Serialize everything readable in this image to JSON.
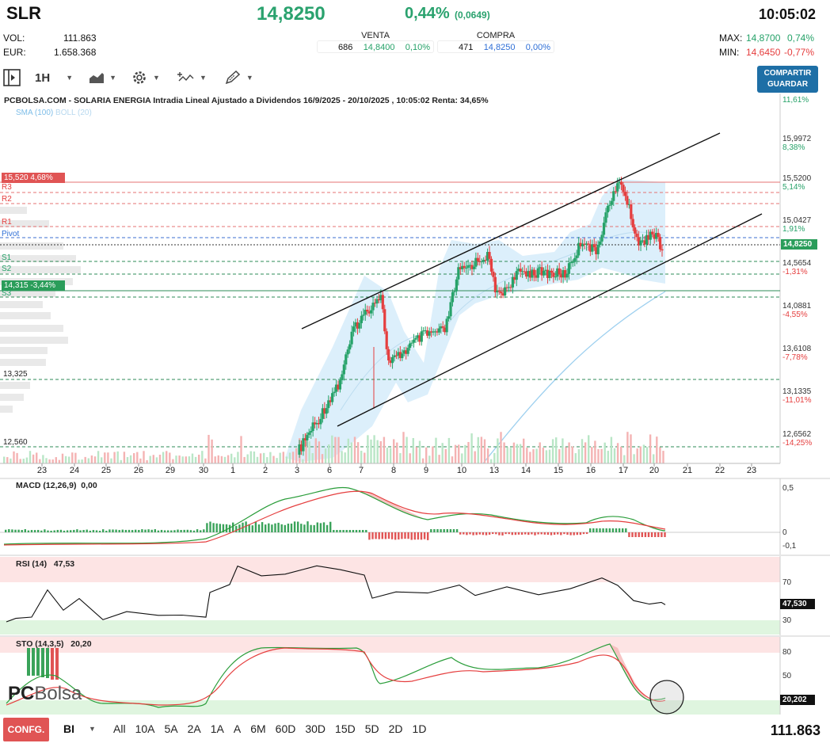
{
  "header": {
    "ticker": "SLR",
    "price": "14,8250",
    "change_pct": "0,44%",
    "change_abs": "(0,0649)",
    "time": "10:05:02",
    "vol_label": "VOL:",
    "vol_value": "111.863",
    "eur_label": "EUR:",
    "eur_value": "1.658.368",
    "max_label": "MAX:",
    "max_value": "14,8700",
    "max_pct": "0,74%",
    "min_label": "MIN:",
    "min_value": "14,6450",
    "min_pct": "-0,77%"
  },
  "bidask": {
    "sell_label": "VENTA",
    "sell_qty": "686",
    "sell_price": "14,8400",
    "sell_pct": "0,10%",
    "buy_label": "COMPRA",
    "buy_qty": "471",
    "buy_price": "14,8250",
    "buy_pct": "0,00%"
  },
  "toolbar": {
    "timeframe": "1H",
    "share_label_1": "COMPARTIR",
    "share_label_2": "GUARDAR"
  },
  "chart": {
    "title": "PCBOLSA.COM - SOLARIA ENERGIA Intradia Lineal Ajustado a Dividendos 16/9/2025 - 20/10/2025 , 10:05:02 Renta: 34,65%",
    "legend_sma": "SMA (100)",
    "legend_boll": "BOLL (20)",
    "y_ticks": [
      {
        "price": "15,9972",
        "pct": "8,38%"
      },
      {
        "price": "15,5200",
        "pct": "5,14%"
      },
      {
        "price": "15,0427",
        "pct": "1,91%"
      },
      {
        "price": "14,5654",
        "pct": "-1,31%"
      },
      {
        "price": "14,0881",
        "pct": "-4,55%"
      },
      {
        "price": "13,6108",
        "pct": "-7,78%"
      },
      {
        "price": "13,1335",
        "pct": "-11,01%"
      },
      {
        "price": "12,6562",
        "pct": "-14,25%"
      }
    ],
    "top_pct": "11,61%",
    "current_price_tag": "14,8250",
    "max_tag": "15,520  4,68%",
    "min_tag": "14,315  -3,44%",
    "levels": {
      "r3": "R3",
      "r2": "R2",
      "r1": "R1",
      "pivot": "Pivot",
      "s1": "S1",
      "s2": "S2",
      "s3": "S3"
    },
    "price_levels_left": [
      "13,325",
      "12,560"
    ],
    "x_ticks": [
      "23",
      "24",
      "25",
      "26",
      "29",
      "30",
      "1",
      "2",
      "3",
      "6",
      "7",
      "8",
      "9",
      "10",
      "13",
      "14",
      "15",
      "16",
      "17",
      "20",
      "21",
      "22",
      "23"
    ]
  },
  "macd": {
    "title": "MACD (12,26,9)",
    "value": "0,00",
    "ticks": [
      "0,5",
      "0",
      "-0,1"
    ]
  },
  "rsi": {
    "title": "RSI (14)",
    "value": "47,53",
    "ticks": [
      "70",
      "30"
    ],
    "tag": "47,530"
  },
  "sto": {
    "title": "STO (14,3,5)",
    "value": "20,20",
    "ticks": [
      "80",
      "50"
    ],
    "tag": "20,202"
  },
  "logo": {
    "pc": "PC",
    "bolsa": "Bolsa"
  },
  "footer": {
    "config_label": "CONFG.",
    "bi_label": "BI",
    "ranges": [
      "All",
      "10A",
      "5A",
      "2A",
      "1A",
      "A",
      "6M",
      "60D",
      "30D",
      "15D",
      "5D",
      "2D",
      "1D"
    ],
    "volume_total": "111.863"
  },
  "colors": {
    "up": "#26a269",
    "down": "#e53e3e",
    "accent": "#1e6fa6",
    "boll_fill": "#d6ecfa",
    "sma": "#9ed0ef"
  }
}
